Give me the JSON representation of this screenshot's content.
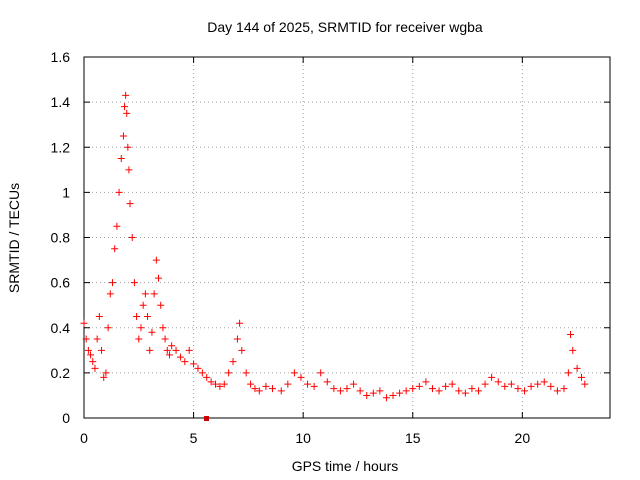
{
  "chart_data": {
    "type": "scatter",
    "title": "Day 144 of 2025, SRMTID for receiver wgba",
    "xlabel": "GPS time / hours",
    "ylabel": "SRMTID / TECUs",
    "xlim": [
      0,
      24
    ],
    "ylim": [
      0,
      1.6
    ],
    "xticks": [
      0,
      5,
      10,
      15,
      20
    ],
    "xtick_labels": [
      "0",
      "5",
      "10",
      "15",
      "20"
    ],
    "yticks": [
      0,
      0.2,
      0.4,
      0.6,
      0.8,
      1,
      1.2,
      1.4,
      1.6
    ],
    "ytick_labels": [
      "0",
      "0.2",
      "0.4",
      "0.6",
      "0.8",
      "1",
      "1.2",
      "1.4",
      "1.6"
    ],
    "grid": true,
    "marker": "plus",
    "color": "#ff0000",
    "series": [
      {
        "name": "wgba",
        "x": [
          0.0,
          0.1,
          0.2,
          0.3,
          0.4,
          0.5,
          0.6,
          0.7,
          0.8,
          0.9,
          1.0,
          1.1,
          1.2,
          1.3,
          1.4,
          1.5,
          1.6,
          1.7,
          1.8,
          1.85,
          1.9,
          1.95,
          2.0,
          2.05,
          2.1,
          2.2,
          2.3,
          2.4,
          2.5,
          2.6,
          2.7,
          2.8,
          2.9,
          3.0,
          3.1,
          3.2,
          3.3,
          3.4,
          3.5,
          3.6,
          3.7,
          3.8,
          3.9,
          4.0,
          4.2,
          4.4,
          4.6,
          4.8,
          5.0,
          5.2,
          5.4,
          5.6,
          5.8,
          6.0,
          6.2,
          6.4,
          6.6,
          6.8,
          7.0,
          7.1,
          7.2,
          7.4,
          7.6,
          7.8,
          8.0,
          8.3,
          8.6,
          9.0,
          9.3,
          9.6,
          9.9,
          10.2,
          10.5,
          10.8,
          11.1,
          11.4,
          11.7,
          12.0,
          12.3,
          12.6,
          12.9,
          13.2,
          13.5,
          13.8,
          14.1,
          14.4,
          14.7,
          15.0,
          15.3,
          15.6,
          15.9,
          16.2,
          16.5,
          16.8,
          17.1,
          17.4,
          17.7,
          18.0,
          18.3,
          18.6,
          18.9,
          19.2,
          19.5,
          19.8,
          20.1,
          20.4,
          20.7,
          21.0,
          21.3,
          21.6,
          21.9,
          22.1,
          22.2,
          22.3,
          22.5,
          22.7,
          22.85
        ],
        "y": [
          0.42,
          0.35,
          0.3,
          0.28,
          0.25,
          0.22,
          0.35,
          0.45,
          0.3,
          0.18,
          0.2,
          0.4,
          0.55,
          0.6,
          0.75,
          0.85,
          1.0,
          1.15,
          1.25,
          1.38,
          1.43,
          1.35,
          1.2,
          1.1,
          0.95,
          0.8,
          0.6,
          0.45,
          0.35,
          0.4,
          0.5,
          0.55,
          0.45,
          0.3,
          0.38,
          0.55,
          0.7,
          0.62,
          0.5,
          0.4,
          0.35,
          0.3,
          0.28,
          0.32,
          0.3,
          0.27,
          0.25,
          0.3,
          0.24,
          0.22,
          0.2,
          0.18,
          0.16,
          0.15,
          0.14,
          0.15,
          0.2,
          0.25,
          0.35,
          0.42,
          0.3,
          0.2,
          0.15,
          0.13,
          0.12,
          0.14,
          0.13,
          0.12,
          0.15,
          0.2,
          0.18,
          0.15,
          0.14,
          0.2,
          0.16,
          0.13,
          0.12,
          0.13,
          0.15,
          0.12,
          0.1,
          0.11,
          0.12,
          0.09,
          0.1,
          0.11,
          0.12,
          0.13,
          0.14,
          0.16,
          0.13,
          0.12,
          0.14,
          0.15,
          0.12,
          0.11,
          0.13,
          0.12,
          0.15,
          0.18,
          0.16,
          0.14,
          0.15,
          0.13,
          0.12,
          0.14,
          0.15,
          0.16,
          0.14,
          0.12,
          0.13,
          0.2,
          0.37,
          0.3,
          0.22,
          0.18,
          0.15
        ]
      }
    ]
  }
}
